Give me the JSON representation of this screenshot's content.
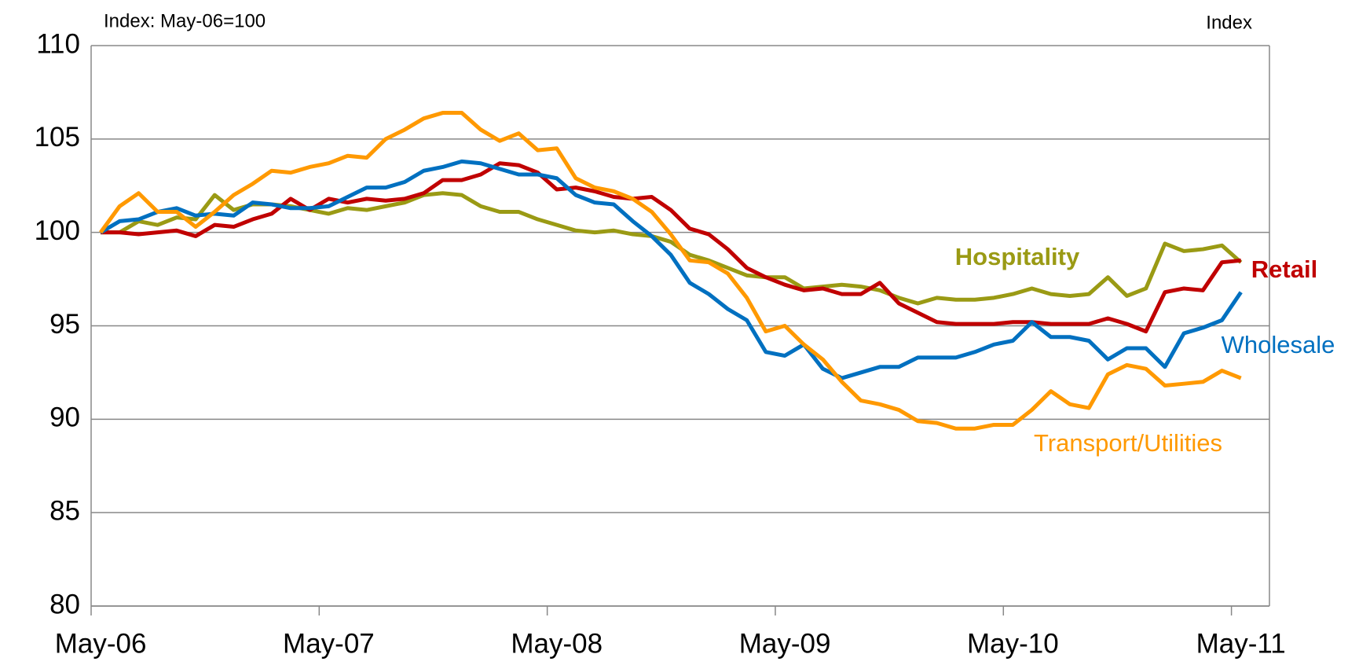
{
  "chart_data": {
    "type": "line",
    "y_label_left": "Index:  May-06=100",
    "y_label_right": "Index",
    "categories": [
      "May-06",
      null,
      null,
      null,
      null,
      null,
      null,
      null,
      null,
      null,
      null,
      null,
      "May-07",
      null,
      null,
      null,
      null,
      null,
      null,
      null,
      null,
      null,
      null,
      null,
      "May-08",
      null,
      null,
      null,
      null,
      null,
      null,
      null,
      null,
      null,
      null,
      null,
      "May-09",
      null,
      null,
      null,
      null,
      null,
      null,
      null,
      null,
      null,
      null,
      null,
      "May-10",
      null,
      null,
      null,
      null,
      null,
      null,
      null,
      null,
      null,
      null,
      null,
      "May-11"
    ],
    "series": [
      {
        "name": "Hospitality",
        "color": "#9a9a14",
        "values": [
          100,
          100,
          100.6,
          100.4,
          100.8,
          100.7,
          102,
          101.2,
          101.5,
          101.5,
          101.4,
          101.2,
          101,
          101.3,
          101.2,
          101.4,
          101.6,
          102,
          102.1,
          102,
          101.4,
          101.1,
          101.1,
          100.7,
          100.4,
          100.1,
          100,
          100.1,
          99.9,
          99.8,
          99.5,
          98.8,
          98.5,
          98.1,
          97.7,
          97.6,
          97.6,
          97,
          97.1,
          97.2,
          97.1,
          96.9,
          96.5,
          96.2,
          96.5,
          96.4,
          96.4,
          96.5,
          96.7,
          97,
          96.7,
          96.6,
          96.7,
          97.6,
          96.6,
          97,
          99.4,
          99,
          99.1,
          99.3,
          98.4
        ]
      },
      {
        "name": "Retail",
        "color": "#c00000",
        "values": [
          100,
          100,
          99.9,
          100,
          100.1,
          99.8,
          100.4,
          100.3,
          100.7,
          101,
          101.8,
          101.2,
          101.8,
          101.6,
          101.8,
          101.7,
          101.8,
          102.1,
          102.8,
          102.8,
          103.1,
          103.7,
          103.6,
          103.2,
          102.3,
          102.4,
          102.2,
          101.9,
          101.8,
          101.9,
          101.2,
          100.2,
          99.9,
          99.1,
          98.1,
          97.6,
          97.2,
          96.9,
          97,
          96.7,
          96.7,
          97.3,
          96.2,
          95.7,
          95.2,
          95.1,
          95.1,
          95.1,
          95.2,
          95.2,
          95.1,
          95.1,
          95.1,
          95.4,
          95.1,
          94.7,
          96.8,
          97,
          96.9,
          98.4,
          98.5
        ]
      },
      {
        "name": "Wholesale",
        "color": "#0070c0",
        "values": [
          100,
          100.6,
          100.7,
          101.1,
          101.3,
          100.9,
          101,
          100.9,
          101.6,
          101.5,
          101.3,
          101.3,
          101.4,
          101.9,
          102.4,
          102.4,
          102.7,
          103.3,
          103.5,
          103.8,
          103.7,
          103.4,
          103.1,
          103.1,
          102.9,
          102,
          101.6,
          101.5,
          100.6,
          99.8,
          98.8,
          97.3,
          96.7,
          95.9,
          95.3,
          93.6,
          93.4,
          94,
          92.7,
          92.2,
          92.5,
          92.8,
          92.8,
          93.3,
          93.3,
          93.3,
          93.6,
          94,
          94.2,
          95.2,
          94.4,
          94.4,
          94.2,
          93.2,
          93.8,
          93.8,
          92.8,
          94.6,
          94.9,
          95.3,
          96.8
        ]
      },
      {
        "name": "Transport/Utilities",
        "color": "#ff9900",
        "values": [
          100,
          101.4,
          102.1,
          101.1,
          101.1,
          100.3,
          101.1,
          102,
          102.6,
          103.3,
          103.2,
          103.5,
          103.7,
          104.1,
          104,
          105,
          105.5,
          106.1,
          106.4,
          106.4,
          105.5,
          104.9,
          105.3,
          104.4,
          104.5,
          102.9,
          102.4,
          102.2,
          101.8,
          101.1,
          99.9,
          98.5,
          98.4,
          97.8,
          96.5,
          94.7,
          95,
          94,
          93.2,
          92,
          91,
          90.8,
          90.5,
          89.9,
          89.8,
          89.5,
          89.5,
          89.7,
          89.7,
          90.5,
          91.5,
          90.8,
          90.6,
          92.4,
          92.9,
          92.7,
          91.8,
          91.9,
          92,
          92.6,
          92.2
        ]
      }
    ],
    "ylim": [
      80,
      110
    ],
    "yticks": [
      80,
      85,
      90,
      95,
      100,
      105,
      110
    ],
    "grid": true
  }
}
